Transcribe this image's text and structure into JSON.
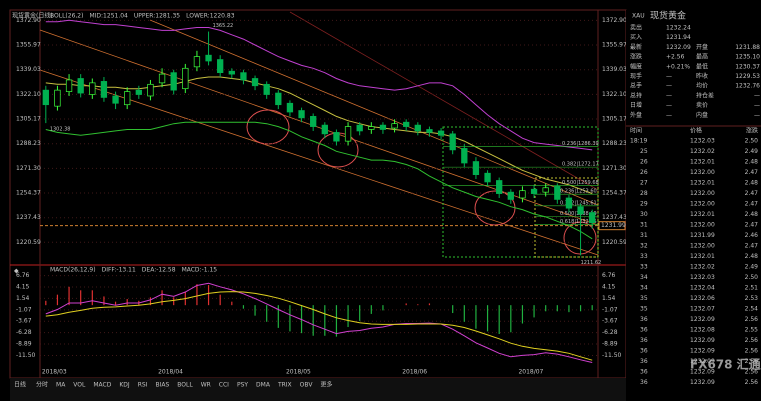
{
  "chart_data": [
    {
      "type": "candlestick",
      "title": "现货黄金(日线)",
      "indicator_labels": [
        "BOLL(26,2)",
        "MID:1251.04",
        "UPPER:1281.35",
        "LOWER:1220.83"
      ],
      "categories": [
        "2018/03",
        null,
        null,
        null,
        null,
        null,
        null,
        null,
        null,
        null,
        "2018/04",
        null,
        null,
        null,
        null,
        null,
        null,
        null,
        null,
        null,
        null,
        "2018/05",
        null,
        null,
        null,
        null,
        null,
        null,
        null,
        null,
        null,
        "2018/06",
        null,
        null,
        null,
        null,
        null,
        null,
        null,
        null,
        null,
        "2018/07",
        null,
        null,
        null,
        null,
        null,
        null
      ],
      "open": [
        1325,
        1314,
        1324,
        1333,
        1322,
        1331,
        1321,
        1315,
        1325,
        1321,
        1330,
        1337,
        1326,
        1341,
        1349,
        1346,
        1338,
        1337,
        1333,
        1329,
        1323,
        1316,
        1311,
        1307,
        1301,
        1296,
        1290,
        1301,
        1298,
        1301,
        1299,
        1303,
        1301,
        1298,
        1297,
        1295,
        1285,
        1276,
        1268,
        1263,
        1255,
        1251,
        1257,
        1255,
        1259,
        1251,
        1245,
        1241
      ],
      "high": [
        1328,
        1328,
        1336,
        1336,
        1333,
        1334,
        1324,
        1327,
        1328,
        1332,
        1340,
        1339,
        1343,
        1352,
        1365.22,
        1349,
        1340,
        1339,
        1335,
        1331,
        1325,
        1318,
        1313,
        1309,
        1303,
        1298,
        1303,
        1303,
        1303,
        1303,
        1305,
        1305,
        1303,
        1300,
        1299,
        1297,
        1288,
        1279,
        1270,
        1265,
        1257,
        1259,
        1260,
        1261,
        1261,
        1253,
        1247,
        1243
      ],
      "low": [
        1302.38,
        1311,
        1321,
        1320,
        1319,
        1317,
        1312,
        1312,
        1319,
        1318,
        1327,
        1322,
        1323,
        1338,
        1342,
        1334,
        1333,
        1329,
        1325,
        1319,
        1312,
        1307,
        1303,
        1297,
        1292,
        1287,
        1287,
        1294,
        1295,
        1295,
        1296,
        1297,
        1294,
        1293,
        1291,
        1281,
        1272,
        1264,
        1259,
        1251,
        1247,
        1248,
        1251,
        1252,
        1247,
        1241,
        1211.62,
        1230
      ],
      "close": [
        1315,
        1325,
        1332,
        1323,
        1330,
        1320,
        1316,
        1324,
        1322,
        1329,
        1336,
        1325,
        1340,
        1348,
        1345,
        1337,
        1336,
        1332,
        1328,
        1322,
        1315,
        1310,
        1306,
        1300,
        1295,
        1290,
        1300,
        1297,
        1300,
        1298,
        1302,
        1300,
        1297,
        1296,
        1294,
        1284,
        1275,
        1267,
        1262,
        1254,
        1250,
        1256,
        1254,
        1258,
        1250,
        1244,
        1240,
        1234
      ],
      "up_color": "#3cff3c",
      "down_color": "#00b050",
      "series": [
        {
          "color": "#c040d0",
          "values": [
            1372,
            1372,
            1373,
            1372,
            1371,
            1370,
            1370,
            1369,
            1368,
            1367,
            1366,
            1366,
            1367,
            1368,
            1368,
            1366,
            1363,
            1360,
            1356,
            1352,
            1348,
            1345,
            1342,
            1340,
            1337,
            1333,
            1330,
            1328,
            1327,
            1326,
            1325,
            1326,
            1328,
            1330,
            1330,
            1328,
            1322,
            1315,
            1308,
            1302,
            1297,
            1292,
            1289,
            1288,
            1287,
            1286,
            1285,
            1284
          ]
        },
        {
          "color": "#c8c040",
          "values": [
            1330,
            1329,
            1329,
            1328,
            1328,
            1327,
            1327,
            1326,
            1326,
            1327,
            1328,
            1329,
            1331,
            1333,
            1334,
            1334,
            1333,
            1332,
            1330,
            1328,
            1326,
            1323,
            1319,
            1315,
            1311,
            1307,
            1304,
            1302,
            1300,
            1299,
            1298,
            1297,
            1296,
            1296,
            1295,
            1293,
            1290,
            1286,
            1282,
            1278,
            1274,
            1270,
            1267,
            1264,
            1262,
            1260,
            1257,
            1254
          ]
        },
        {
          "color": "#30c030",
          "values": [
            1298,
            1296,
            1295,
            1294,
            1295,
            1296,
            1297,
            1298,
            1298,
            1298,
            1300,
            1302,
            1303,
            1303,
            1303,
            1303,
            1303,
            1303,
            1303,
            1302,
            1300,
            1297,
            1293,
            1290,
            1287,
            1283,
            1281,
            1279,
            1277,
            1277,
            1276,
            1274,
            1271,
            1266,
            1262,
            1258,
            1255,
            1252,
            1250,
            1248,
            1245,
            1243,
            1240,
            1238,
            1235,
            1232,
            1228,
            1223
          ]
        }
      ],
      "last_price": 1231.99,
      "annotations": [
        {
          "label": "0.236|1286.39",
          "value": 1286.39
        },
        {
          "label": "0.382|1272.17",
          "value": 1272.17
        },
        {
          "label": "0.500|1259.68",
          "value": 1259.68
        },
        {
          "label": "0.236|1253.60",
          "value": 1253.6
        },
        {
          "label": "0.382|1245.61",
          "value": 1245.61
        },
        {
          "label": "0.500|1238.19",
          "value": 1238.19
        },
        {
          "label": "0.618|1232.75",
          "value": 1232.75
        }
      ],
      "ylim": [
        1205,
        1380
      ],
      "yticks": [
        {
          "value": 1372.9,
          "label": "1372.90"
        },
        1355.97,
        1339.03,
        {
          "value": 1322.1,
          "label": "1322.10"
        },
        1305.17,
        1288.23,
        {
          "value": 1271.3,
          "label": "1271.30"
        },
        1254.37,
        1237.43,
        1220.59
      ]
    },
    {
      "type": "macd",
      "indicator_labels": [
        "MACD(26,12,9)",
        "DIFF:-13.11",
        "DEA:-12.58",
        "MACD:-1.15"
      ],
      "series": [
        {
          "style": "bar",
          "color": "#e03030",
          "negative_color": "#20b040",
          "values": [
            1,
            2.4,
            4.2,
            3.4,
            3.4,
            2,
            0.8,
            1.4,
            1,
            1.8,
            3.4,
            1.8,
            3,
            4.8,
            4.6,
            2.4,
            0.8,
            -0.8,
            -2.4,
            -3.8,
            -5.2,
            -6,
            -6.4,
            -7,
            -7,
            -7.2,
            -5,
            -3.6,
            -2,
            -1.2,
            0,
            0.4,
            0.2,
            0.4,
            0,
            -1.8,
            -3.8,
            -5.4,
            -6,
            -6.6,
            -6.2,
            -4.2,
            -2.8,
            -1.4,
            -1.4,
            -1.6,
            -1.4,
            -1.15
          ]
        },
        {
          "style": "line",
          "color": "#d040d0",
          "values": [
            -2,
            -1,
            0.5,
            0.5,
            1,
            0.5,
            0,
            0.5,
            0.5,
            1.2,
            2.5,
            2,
            3,
            4.5,
            5,
            4.2,
            3.5,
            2.6,
            1.5,
            0.3,
            -1,
            -2.2,
            -3.3,
            -4.5,
            -5.5,
            -6.5,
            -6,
            -5.8,
            -5.3,
            -5,
            -4.4,
            -4.2,
            -4.2,
            -4.1,
            -4.3,
            -5.5,
            -7,
            -8.6,
            -9.8,
            -11,
            -11.8,
            -11.5,
            -11.3,
            -10.9,
            -11.2,
            -11.8,
            -12.5,
            -13.11
          ]
        },
        {
          "style": "line",
          "color": "#e0d020",
          "values": [
            -2.5,
            -2.2,
            -1.6,
            -1.2,
            -0.7,
            -0.5,
            -0.4,
            -0.2,
            0,
            0.3,
            0.8,
            1.1,
            1.5,
            2.1,
            2.7,
            3,
            3.1,
            3,
            2.7,
            2.2,
            1.6,
            0.8,
            -0.1,
            -1,
            -2,
            -2.9,
            -3.5,
            -4,
            -4.3,
            -4.4,
            -4.4,
            -4.4,
            -4.3,
            -4.3,
            -4.3,
            -4.6,
            -5.1,
            -5.9,
            -6.8,
            -7.7,
            -8.7,
            -9.4,
            -9.9,
            -10.2,
            -10.5,
            -11,
            -11.8,
            -12.58
          ]
        }
      ],
      "ylim": [
        -13,
        8.5
      ],
      "yticks": [
        6.76,
        4.15,
        1.54,
        -1.07,
        -3.67,
        -6.28,
        -8.89,
        {
          "value": -11.5,
          "label": "-11.50"
        }
      ]
    }
  ],
  "toolbar": {
    "period": "日线",
    "tabs": [
      "分时",
      "MA",
      "VOL",
      "MACD",
      "KDJ",
      "RSI",
      "BIAS",
      "BOLL",
      "WR",
      "CCI",
      "PSY",
      "DMA",
      "TRIX",
      "OBV",
      "更多"
    ]
  },
  "quote_panel": {
    "code": "XAU",
    "title": "现货黄金",
    "fields": [
      [
        "卖出",
        "1232.24",
        "",
        ""
      ],
      [
        "买入",
        "1231.94",
        "",
        ""
      ],
      [
        "最新",
        "1232.09",
        "开盘",
        "1231.88"
      ],
      [
        "涨跌",
        "+2.56",
        "最高",
        "1235.10"
      ],
      [
        "幅度",
        "+0.21%",
        "最低",
        "1230.37"
      ],
      [
        "现手",
        "—",
        "昨收",
        "1229.53"
      ],
      [
        "总手",
        "—",
        "均价",
        "1232.76"
      ],
      [
        "总持",
        "—",
        "持仓差",
        "—"
      ],
      [
        "日增",
        "—",
        "卖价",
        "—"
      ],
      [
        "外盘",
        "—",
        "内盘",
        "—"
      ]
    ],
    "trade_header": [
      "时间",
      "价格",
      "涨跌"
    ],
    "trades": [
      [
        "18:19",
        "1232.03",
        "2.50"
      ],
      [
        "25",
        "1232.02",
        "2.49"
      ],
      [
        "26",
        "1232.01",
        "2.48"
      ],
      [
        "26",
        "1232.00",
        "2.47"
      ],
      [
        "27",
        "1232.01",
        "2.48"
      ],
      [
        "28",
        "1232.00",
        "2.47"
      ],
      [
        "29",
        "1232.00",
        "2.47"
      ],
      [
        "30",
        "1232.01",
        "2.48"
      ],
      [
        "31",
        "1232.00",
        "2.47"
      ],
      [
        "31",
        "1231.99",
        "2.46"
      ],
      [
        "32",
        "1232.00",
        "2.47"
      ],
      [
        "33",
        "1232.01",
        "2.48"
      ],
      [
        "33",
        "1232.02",
        "2.49"
      ],
      [
        "34",
        "1232.03",
        "2.50"
      ],
      [
        "34",
        "1232.04",
        "2.51"
      ],
      [
        "35",
        "1232.06",
        "2.53"
      ],
      [
        "35",
        "1232.07",
        "2.54"
      ],
      [
        "36",
        "1232.09",
        "2.56"
      ],
      [
        "36",
        "1232.08",
        "2.55"
      ],
      [
        "36",
        "1232.09",
        "2.56"
      ],
      [
        "36",
        "1232.09",
        "2.56"
      ],
      [
        "36",
        "1232.09",
        "2.56"
      ],
      [
        "36",
        "1232.09",
        "2.56"
      ],
      [
        "36",
        "1232.09",
        "2.56"
      ]
    ],
    "watermark": "FX678 汇通网"
  }
}
